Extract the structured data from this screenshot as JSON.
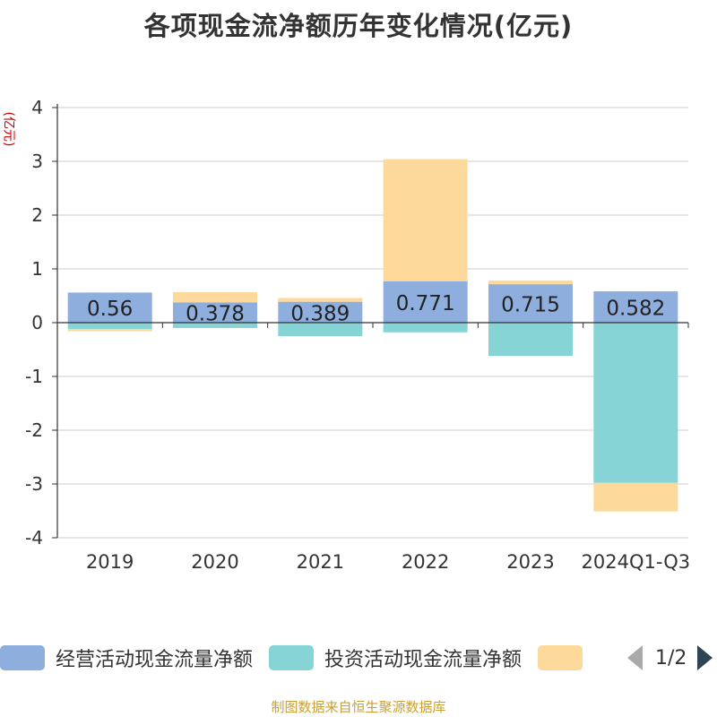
{
  "chart_data": {
    "type": "bar",
    "stacked": true,
    "title": "各项现金流净额历年变化情况(亿元)",
    "ylabel": "(亿元)",
    "ylim": [
      -4,
      4
    ],
    "yticks": [
      4,
      3,
      2,
      1,
      0,
      -1,
      -2,
      -3,
      -4
    ],
    "grid": true,
    "categories": [
      "2019",
      "2020",
      "2021",
      "2022",
      "2023",
      "2024Q1-Q3"
    ],
    "series": [
      {
        "name": "经营活动现金流量净额",
        "color": "#8eaedd",
        "values": [
          0.56,
          0.378,
          0.389,
          0.771,
          0.715,
          0.582
        ],
        "labels": [
          "0.56",
          "0.378",
          "0.389",
          "0.771",
          "0.715",
          "0.582"
        ]
      },
      {
        "name": "投资活动现金流量净额",
        "color": "#86d4d6",
        "values": [
          -0.12,
          -0.1,
          -0.25,
          -0.18,
          -0.62,
          -2.98
        ]
      },
      {
        "name": "",
        "color": "#fdd99b",
        "values": [
          -0.04,
          0.19,
          0.07,
          2.27,
          0.07,
          -0.53
        ]
      }
    ],
    "legend_position": "bottom"
  },
  "legend": {
    "page_indicator": "1/2",
    "prev_icon": "triangle-left-icon",
    "next_icon": "triangle-right-icon"
  },
  "source_note": "制图数据来自恒生聚源数据库"
}
